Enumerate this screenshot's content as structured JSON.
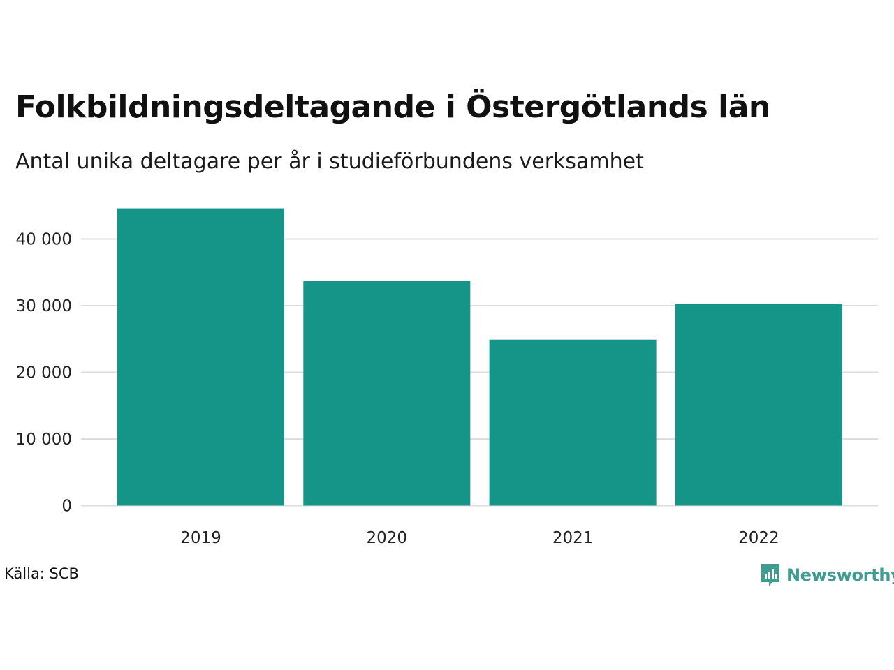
{
  "header": {
    "title": "Folkbildningsdeltagande i Östergötlands län",
    "subtitle": "Antal unika deltagare per år i studieförbundens verksamhet"
  },
  "chart_data": {
    "type": "bar",
    "categories": [
      "2019",
      "2020",
      "2021",
      "2022"
    ],
    "values": [
      44600,
      33700,
      24900,
      30300
    ],
    "ylim": [
      0,
      40000
    ],
    "yticks": [
      0,
      10000,
      20000,
      30000,
      40000
    ],
    "ytick_labels": [
      "0",
      "10 000",
      "20 000",
      "30 000",
      "40 000"
    ],
    "grid": true,
    "bar_color": "#159588",
    "grid_color": "#dddddd"
  },
  "footer": {
    "source": "Källa: SCB",
    "brand": "Newsworthy",
    "brand_icon": "newsworthy-logo-icon",
    "brand_color": "#3f9c8e"
  }
}
